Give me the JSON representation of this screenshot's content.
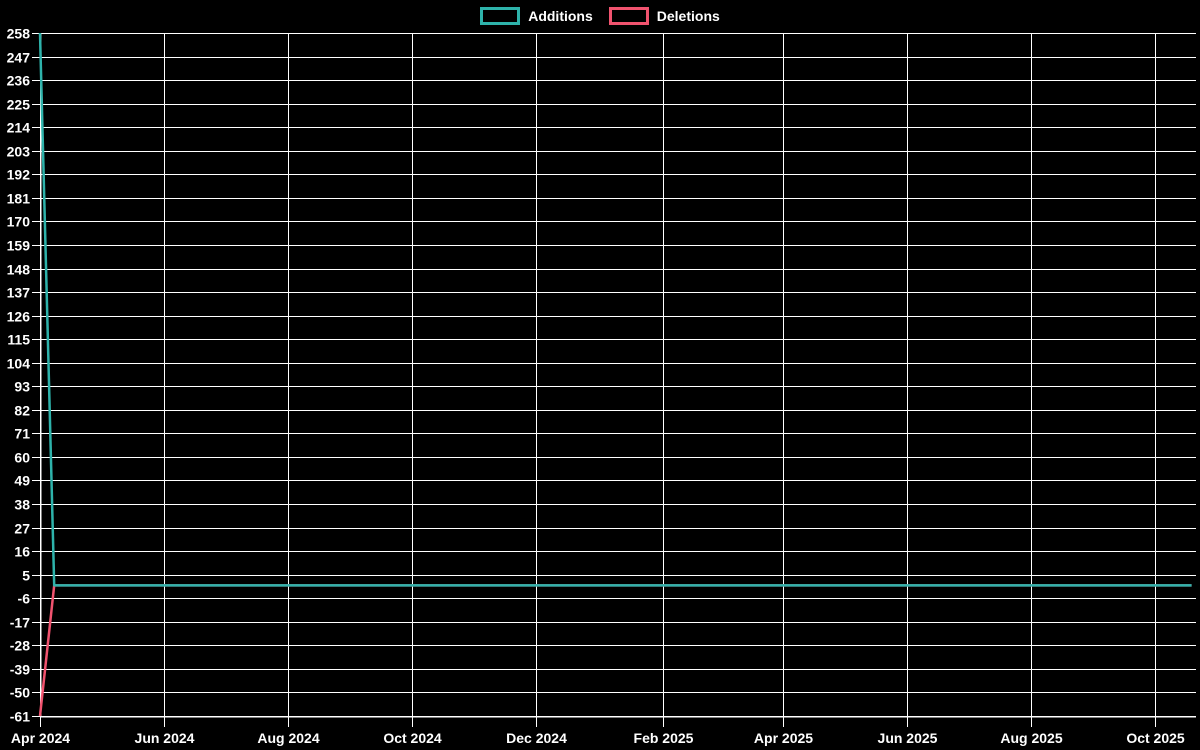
{
  "page": {
    "background_color": "#000000",
    "grid_color": "#ffffff",
    "text_color": "#ffffff"
  },
  "legend": {
    "position": "top-center",
    "items": [
      {
        "label": "Additions",
        "color": "#2eb3ab"
      },
      {
        "label": "Deletions",
        "color": "#f1536f"
      }
    ]
  },
  "chart_data": {
    "type": "line",
    "title": "",
    "xlabel": "",
    "ylabel": "",
    "grid": true,
    "legend_position": "top-center",
    "x_axis": {
      "tick_labels": [
        "Apr 2024",
        "Jun 2024",
        "Aug 2024",
        "Oct 2024",
        "Dec 2024",
        "Feb 2025",
        "Apr 2025",
        "Jun 2025",
        "Aug 2025",
        "Oct 2025"
      ],
      "tick_positions_days": [
        0,
        61,
        122,
        183,
        244,
        306,
        365,
        426,
        487,
        548
      ],
      "range_days": [
        0,
        568
      ],
      "unit": "days since 2024-04-01"
    },
    "y_axis": {
      "tick_labels": [
        258,
        247,
        236,
        225,
        214,
        203,
        192,
        181,
        170,
        159,
        148,
        137,
        126,
        115,
        104,
        93,
        82,
        71,
        60,
        49,
        38,
        27,
        16,
        5,
        -6,
        -17,
        -28,
        -39,
        -50,
        -61
      ],
      "range": [
        -61,
        258
      ]
    },
    "series": [
      {
        "name": "Deletions",
        "color": "#f1536f",
        "points_day_value": [
          [
            0,
            -61
          ],
          [
            7,
            0
          ],
          [
            566,
            0
          ]
        ]
      },
      {
        "name": "Additions",
        "color": "#2eb3ab",
        "points_day_value": [
          [
            0,
            258
          ],
          [
            7,
            0
          ],
          [
            566,
            0
          ]
        ]
      }
    ]
  }
}
